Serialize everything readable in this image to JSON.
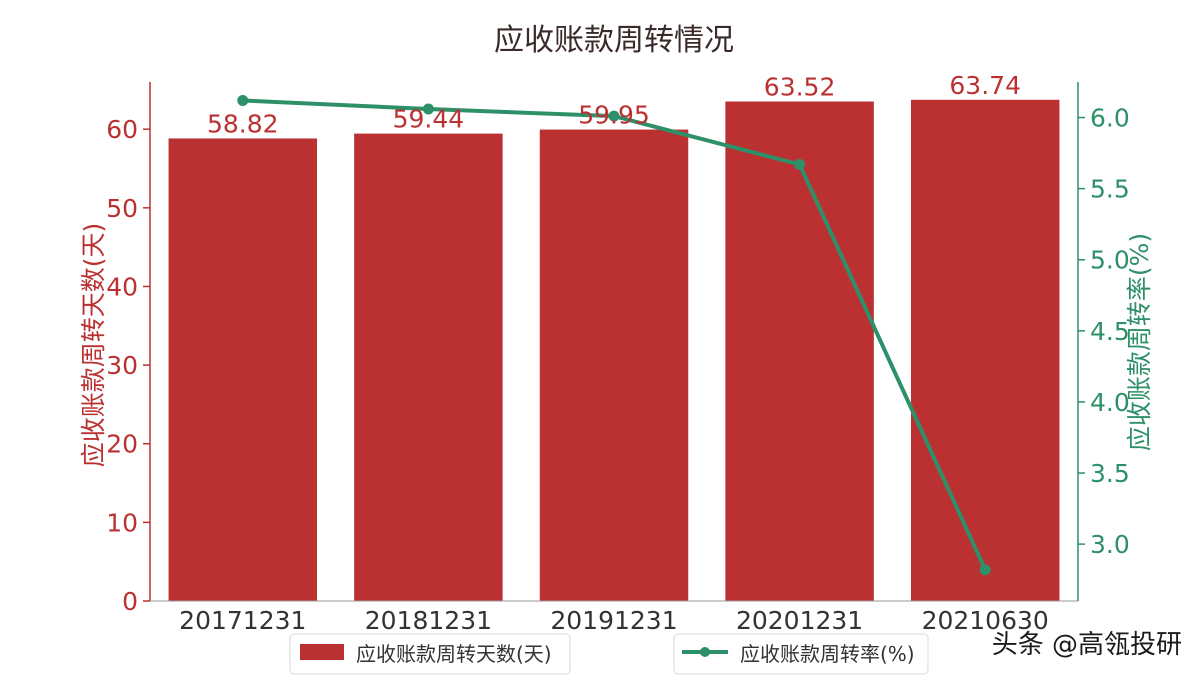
{
  "chart_data": {
    "type": "bar",
    "title": "应收账款周转情况",
    "categories": [
      "20171231",
      "20181231",
      "20191231",
      "20201231",
      "20210630"
    ],
    "series": [
      {
        "name": "应收账款周转天数(天)",
        "type": "bar",
        "axis": "left",
        "color": "#bb3131",
        "values": [
          58.82,
          59.44,
          59.95,
          63.52,
          63.74
        ],
        "data_labels": [
          "58.82",
          "59.44",
          "59.95",
          "63.52",
          "63.74"
        ]
      },
      {
        "name": "应收账款周转率(%)",
        "type": "line",
        "axis": "right",
        "color": "#2e9068",
        "values": [
          6.12,
          6.06,
          6.01,
          5.67,
          2.82
        ]
      }
    ],
    "y_left": {
      "label": "应收账款周转天数(天)",
      "range": [
        0,
        66
      ],
      "ticks": [
        0,
        10,
        20,
        30,
        40,
        50,
        60
      ],
      "tick_labels": [
        "0",
        "10",
        "20",
        "30",
        "40",
        "50",
        "60"
      ],
      "color": "#bb3131"
    },
    "y_right": {
      "label": "应收账款周转率(%)",
      "range": [
        2.6,
        6.25
      ],
      "ticks": [
        3.0,
        3.5,
        4.0,
        4.5,
        5.0,
        5.5,
        6.0
      ],
      "tick_labels": [
        "3.0",
        "3.5",
        "4.0",
        "4.5",
        "5.0",
        "5.5",
        "6.0"
      ],
      "color": "#2e9068"
    },
    "grid": false,
    "legend_position": "bottom"
  },
  "watermark": "头条 @高瓴投研"
}
